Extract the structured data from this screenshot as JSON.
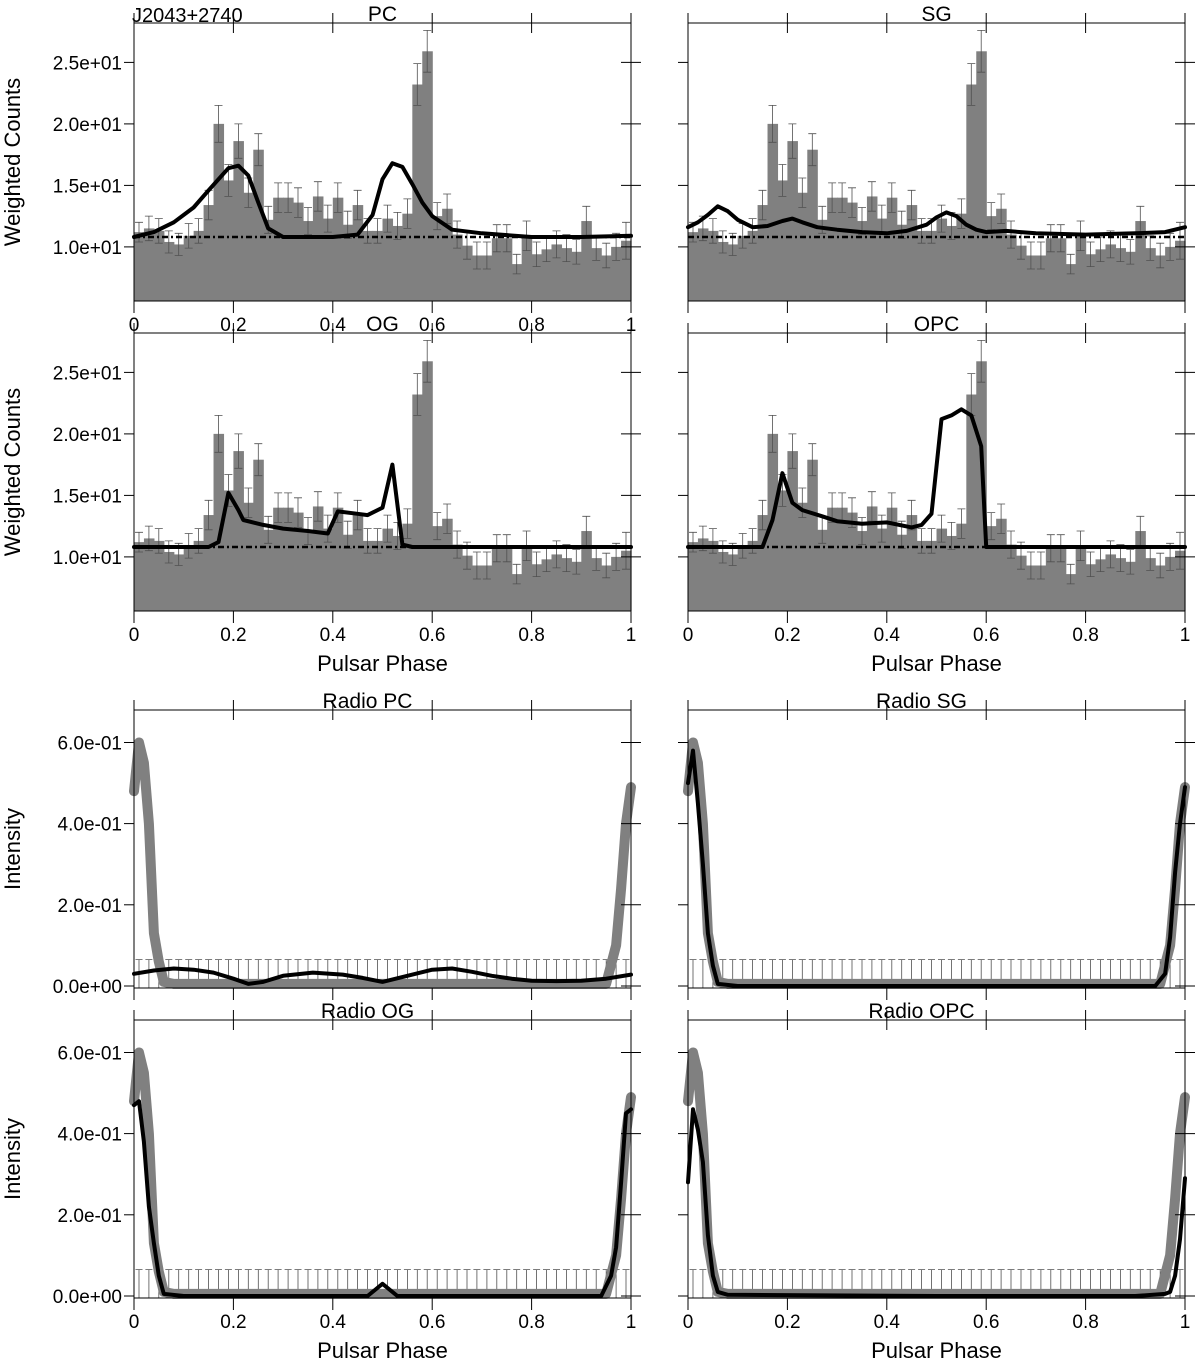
{
  "figure": {
    "source_label": "J2043+2740",
    "xlabel": "Pulsar Phase",
    "gamma_ylabel": "Weighted Counts",
    "radio_ylabel": "Intensity"
  },
  "colors": {
    "hist": "#808080",
    "model": "#000000",
    "radio": "#808080",
    "axis": "#000000"
  },
  "chart_data": [
    {
      "id": "gamma-pc",
      "type": "bar",
      "title": "PC",
      "xlabel": "Pulsar Phase",
      "ylabel": "Weighted Counts",
      "xlim": [
        0,
        1
      ],
      "ylim": [
        5.6,
        28.2
      ],
      "yticks": [
        10,
        15,
        20,
        25
      ],
      "ytick_labels": [
        "1.0e+01",
        "1.5e+01",
        "2.0e+01",
        "2.5e+01"
      ],
      "xticks": [
        0,
        0.2,
        0.4,
        0.6,
        0.8,
        1
      ],
      "xtick_labels": [
        "0",
        "0.2",
        "0.4",
        "0.6",
        "0.8",
        "1"
      ],
      "bins": 50,
      "counts": [
        11.2,
        11.5,
        11.3,
        10.4,
        10.2,
        10.9,
        11.3,
        13.4,
        20.0,
        15.4,
        18.6,
        14.4,
        17.9,
        12.2,
        14.0,
        14.0,
        13.6,
        12.1,
        14.1,
        12.3,
        14.0,
        11.8,
        13.4,
        11.3,
        11.3,
        12.3,
        11.7,
        12.7,
        23.2,
        25.9,
        12.5,
        13.1,
        11.0,
        10.1,
        9.3,
        9.3,
        10.7,
        10.7,
        8.6,
        10.9,
        9.4,
        9.8,
        10.2,
        9.9,
        9.6,
        12.1,
        9.9,
        9.3,
        10.0,
        10.5
      ],
      "errors": [
        0.8,
        1.0,
        1.0,
        0.9,
        0.9,
        1.0,
        1.0,
        1.2,
        1.5,
        1.3,
        1.4,
        1.2,
        1.3,
        1.1,
        1.2,
        1.2,
        1.2,
        1.1,
        1.2,
        1.1,
        1.2,
        1.1,
        1.2,
        1.0,
        1.0,
        1.1,
        1.1,
        1.2,
        1.7,
        1.7,
        1.1,
        1.2,
        1.1,
        1.1,
        1.1,
        1.1,
        1.1,
        1.1,
        0.8,
        1.2,
        1.0,
        1.0,
        1.1,
        1.1,
        1.0,
        1.2,
        1.0,
        1.0,
        1.1,
        1.5
      ],
      "background": 10.8,
      "model": {
        "x": [
          0,
          0.04,
          0.08,
          0.12,
          0.15,
          0.19,
          0.21,
          0.23,
          0.25,
          0.27,
          0.3,
          0.35,
          0.4,
          0.45,
          0.48,
          0.5,
          0.52,
          0.54,
          0.56,
          0.58,
          0.6,
          0.64,
          0.7,
          0.8,
          0.9,
          1.0
        ],
        "y": [
          10.8,
          11.2,
          12.0,
          13.2,
          14.6,
          16.4,
          16.6,
          15.8,
          13.6,
          11.5,
          10.8,
          10.8,
          10.8,
          11.0,
          12.6,
          15.5,
          16.8,
          16.5,
          15.1,
          13.6,
          12.5,
          11.4,
          11.1,
          10.8,
          10.8,
          10.9
        ]
      }
    },
    {
      "id": "gamma-sg",
      "type": "bar",
      "title": "SG",
      "xlabel": "Pulsar Phase",
      "ylabel": "Weighted Counts",
      "xlim": [
        0,
        1
      ],
      "ylim": [
        5.6,
        28.2
      ],
      "yticks": [
        10,
        15,
        20,
        25
      ],
      "ytick_labels": [
        "",
        "",
        "",
        ""
      ],
      "xticks": [
        0,
        0.2,
        0.4,
        0.6,
        0.8,
        1
      ],
      "xtick_labels": [
        "",
        "",
        "",
        "",
        "",
        ""
      ],
      "bins": 50,
      "counts": [
        11.2,
        11.5,
        11.3,
        10.4,
        10.2,
        10.9,
        11.3,
        13.4,
        20.0,
        15.4,
        18.6,
        14.4,
        17.9,
        12.2,
        14.0,
        14.0,
        13.6,
        12.1,
        14.1,
        12.3,
        14.0,
        11.8,
        13.4,
        11.3,
        11.3,
        12.3,
        11.7,
        12.7,
        23.2,
        25.9,
        12.5,
        13.1,
        11.0,
        10.1,
        9.3,
        9.3,
        10.7,
        10.7,
        8.6,
        10.9,
        9.4,
        9.8,
        10.2,
        9.9,
        9.6,
        12.1,
        9.9,
        9.3,
        10.0,
        10.5
      ],
      "errors": [
        0.8,
        1.0,
        1.0,
        0.9,
        0.9,
        1.0,
        1.0,
        1.2,
        1.5,
        1.3,
        1.4,
        1.2,
        1.3,
        1.1,
        1.2,
        1.2,
        1.2,
        1.1,
        1.2,
        1.1,
        1.2,
        1.1,
        1.2,
        1.0,
        1.0,
        1.1,
        1.1,
        1.2,
        1.7,
        1.7,
        1.1,
        1.2,
        1.1,
        1.1,
        1.1,
        1.1,
        1.1,
        1.1,
        0.8,
        1.2,
        1.0,
        1.0,
        1.1,
        1.1,
        1.0,
        1.2,
        1.0,
        1.0,
        1.1,
        1.5
      ],
      "background": 10.8,
      "model": {
        "x": [
          0,
          0.02,
          0.04,
          0.06,
          0.08,
          0.1,
          0.13,
          0.16,
          0.19,
          0.21,
          0.23,
          0.26,
          0.3,
          0.35,
          0.4,
          0.44,
          0.48,
          0.5,
          0.52,
          0.54,
          0.56,
          0.58,
          0.6,
          0.64,
          0.7,
          0.8,
          0.9,
          0.96,
          1.0
        ],
        "y": [
          11.6,
          12.0,
          12.6,
          13.3,
          12.9,
          12.2,
          11.6,
          11.7,
          12.1,
          12.3,
          12.0,
          11.6,
          11.4,
          11.2,
          11.1,
          11.3,
          11.8,
          12.4,
          12.8,
          12.5,
          11.8,
          11.4,
          11.2,
          11.3,
          11.1,
          11.0,
          11.1,
          11.2,
          11.6
        ]
      }
    },
    {
      "id": "gamma-og",
      "type": "bar",
      "title": "OG",
      "xlabel": "Pulsar Phase",
      "ylabel": "Weighted Counts",
      "xlim": [
        0,
        1
      ],
      "ylim": [
        5.6,
        28.2
      ],
      "yticks": [
        10,
        15,
        20,
        25
      ],
      "ytick_labels": [
        "1.0e+01",
        "1.5e+01",
        "2.0e+01",
        "2.5e+01"
      ],
      "xticks": [
        0,
        0.2,
        0.4,
        0.6,
        0.8,
        1
      ],
      "xtick_labels": [
        "0",
        "0.2",
        "0.4",
        "0.6",
        "0.8",
        "1"
      ],
      "bins": 50,
      "counts": [
        11.2,
        11.5,
        11.3,
        10.4,
        10.2,
        10.9,
        11.3,
        13.4,
        20.0,
        15.4,
        18.6,
        14.4,
        17.9,
        12.2,
        14.0,
        14.0,
        13.6,
        12.1,
        14.1,
        12.3,
        14.0,
        11.8,
        13.4,
        11.3,
        11.3,
        12.3,
        11.7,
        12.7,
        23.2,
        25.9,
        12.5,
        13.1,
        11.0,
        10.1,
        9.3,
        9.3,
        10.7,
        10.7,
        8.6,
        10.9,
        9.4,
        9.8,
        10.2,
        9.9,
        9.6,
        12.1,
        9.9,
        9.3,
        10.0,
        10.5
      ],
      "errors": [
        0.8,
        1.0,
        1.0,
        0.9,
        0.9,
        1.0,
        1.0,
        1.2,
        1.5,
        1.3,
        1.4,
        1.2,
        1.3,
        1.1,
        1.2,
        1.2,
        1.2,
        1.1,
        1.2,
        1.1,
        1.2,
        1.1,
        1.2,
        1.0,
        1.0,
        1.1,
        1.1,
        1.2,
        1.7,
        1.7,
        1.1,
        1.2,
        1.1,
        1.1,
        1.1,
        1.1,
        1.1,
        1.1,
        0.8,
        1.2,
        1.0,
        1.0,
        1.1,
        1.1,
        1.0,
        1.2,
        1.0,
        1.0,
        1.1,
        1.5
      ],
      "background": 10.8,
      "model": {
        "x": [
          0,
          0.1,
          0.15,
          0.17,
          0.19,
          0.21,
          0.22,
          0.26,
          0.3,
          0.35,
          0.39,
          0.41,
          0.45,
          0.47,
          0.5,
          0.52,
          0.54,
          0.56,
          0.6,
          0.8,
          1.0
        ],
        "y": [
          10.8,
          10.8,
          10.8,
          11.2,
          15.2,
          13.8,
          13.0,
          12.6,
          12.3,
          12.1,
          11.9,
          13.7,
          13.5,
          13.4,
          14.0,
          17.5,
          11.0,
          10.8,
          10.8,
          10.8,
          10.8
        ]
      }
    },
    {
      "id": "gamma-opc",
      "type": "bar",
      "title": "OPC",
      "xlabel": "Pulsar Phase",
      "ylabel": "Weighted Counts",
      "xlim": [
        0,
        1
      ],
      "ylim": [
        5.6,
        28.2
      ],
      "yticks": [
        10,
        15,
        20,
        25
      ],
      "ytick_labels": [
        "",
        "",
        "",
        ""
      ],
      "xticks": [
        0,
        0.2,
        0.4,
        0.6,
        0.8,
        1
      ],
      "xtick_labels": [
        "0",
        "0.2",
        "0.4",
        "0.6",
        "0.8",
        "1"
      ],
      "bins": 50,
      "counts": [
        11.2,
        11.5,
        11.3,
        10.4,
        10.2,
        10.9,
        11.3,
        13.4,
        20.0,
        15.4,
        18.6,
        14.4,
        17.9,
        12.2,
        14.0,
        14.0,
        13.6,
        12.1,
        14.1,
        12.3,
        14.0,
        11.8,
        13.4,
        11.3,
        11.3,
        12.3,
        11.7,
        12.7,
        23.2,
        25.9,
        12.5,
        13.1,
        11.0,
        10.1,
        9.3,
        9.3,
        10.7,
        10.7,
        8.6,
        10.9,
        9.4,
        9.8,
        10.2,
        9.9,
        9.6,
        12.1,
        9.9,
        9.3,
        10.0,
        10.5
      ],
      "errors": [
        0.8,
        1.0,
        1.0,
        0.9,
        0.9,
        1.0,
        1.0,
        1.2,
        1.5,
        1.3,
        1.4,
        1.2,
        1.3,
        1.1,
        1.2,
        1.2,
        1.2,
        1.1,
        1.2,
        1.1,
        1.2,
        1.1,
        1.2,
        1.0,
        1.0,
        1.1,
        1.1,
        1.2,
        1.7,
        1.7,
        1.1,
        1.2,
        1.1,
        1.1,
        1.1,
        1.1,
        1.1,
        1.1,
        0.8,
        1.2,
        1.0,
        1.0,
        1.1,
        1.1,
        1.0,
        1.2,
        1.0,
        1.0,
        1.1,
        1.5
      ],
      "background": 10.8,
      "model": {
        "x": [
          0,
          0.1,
          0.15,
          0.17,
          0.19,
          0.21,
          0.23,
          0.27,
          0.3,
          0.35,
          0.4,
          0.45,
          0.47,
          0.49,
          0.51,
          0.53,
          0.55,
          0.57,
          0.59,
          0.6,
          0.62,
          0.8,
          1.0
        ],
        "y": [
          10.8,
          10.8,
          10.8,
          13.0,
          16.8,
          14.4,
          13.8,
          13.3,
          12.9,
          12.7,
          12.8,
          12.4,
          12.6,
          13.5,
          21.2,
          21.5,
          22.0,
          21.5,
          19.0,
          10.8,
          10.8,
          10.8,
          10.8
        ]
      }
    },
    {
      "id": "radio-pc",
      "type": "line",
      "title": "Radio PC",
      "xlabel": "Pulsar Phase",
      "ylabel": "Intensity",
      "xlim": [
        0,
        1
      ],
      "ylim": [
        -0.005,
        0.68
      ],
      "yticks": [
        0,
        0.2,
        0.4,
        0.6
      ],
      "ytick_labels": [
        "0.0e+00",
        "2.0e-01",
        "4.0e-01",
        "6.0e-01"
      ],
      "xticks": [
        0,
        0.2,
        0.4,
        0.6,
        0.8,
        1
      ],
      "xtick_labels": [
        "",
        "",
        "",
        "",
        "",
        ""
      ],
      "error_bar_top": 0.065,
      "profile": {
        "x": [
          0,
          0.01,
          0.02,
          0.03,
          0.04,
          0.05,
          0.06,
          0.08,
          0.1,
          0.2,
          0.4,
          0.6,
          0.8,
          0.9,
          0.95,
          0.97,
          0.98,
          0.99,
          1.0
        ],
        "y": [
          0.48,
          0.6,
          0.55,
          0.4,
          0.13,
          0.06,
          0.01,
          0.005,
          0.005,
          0.005,
          0.005,
          0.005,
          0.005,
          0.005,
          0.005,
          0.1,
          0.24,
          0.4,
          0.49
        ]
      },
      "model": {
        "x": [
          0,
          0.04,
          0.08,
          0.12,
          0.16,
          0.2,
          0.23,
          0.26,
          0.3,
          0.36,
          0.42,
          0.46,
          0.5,
          0.55,
          0.6,
          0.64,
          0.68,
          0.72,
          0.76,
          0.8,
          0.85,
          0.9,
          0.95,
          1.0
        ],
        "y": [
          0.03,
          0.038,
          0.043,
          0.04,
          0.033,
          0.018,
          0.005,
          0.01,
          0.025,
          0.033,
          0.028,
          0.02,
          0.01,
          0.025,
          0.04,
          0.043,
          0.035,
          0.025,
          0.018,
          0.013,
          0.012,
          0.013,
          0.018,
          0.028
        ]
      }
    },
    {
      "id": "radio-sg",
      "type": "line",
      "title": "Radio SG",
      "xlabel": "Pulsar Phase",
      "ylabel": "Intensity",
      "xlim": [
        0,
        1
      ],
      "ylim": [
        -0.005,
        0.68
      ],
      "yticks": [
        0,
        0.2,
        0.4,
        0.6
      ],
      "ytick_labels": [
        "",
        "",
        "",
        ""
      ],
      "xticks": [
        0,
        0.2,
        0.4,
        0.6,
        0.8,
        1
      ],
      "xtick_labels": [
        "",
        "",
        "",
        "",
        "",
        ""
      ],
      "error_bar_top": 0.065,
      "profile": {
        "x": [
          0,
          0.01,
          0.02,
          0.03,
          0.04,
          0.05,
          0.06,
          0.08,
          0.1,
          0.2,
          0.4,
          0.6,
          0.8,
          0.9,
          0.95,
          0.97,
          0.98,
          0.99,
          1.0
        ],
        "y": [
          0.48,
          0.6,
          0.55,
          0.4,
          0.13,
          0.06,
          0.01,
          0.005,
          0.005,
          0.005,
          0.005,
          0.005,
          0.005,
          0.005,
          0.005,
          0.1,
          0.24,
          0.4,
          0.49
        ]
      },
      "model": {
        "x": [
          0,
          0.01,
          0.02,
          0.03,
          0.04,
          0.05,
          0.06,
          0.1,
          0.5,
          0.9,
          0.94,
          0.96,
          0.97,
          0.98,
          0.99,
          1.0
        ],
        "y": [
          0.5,
          0.58,
          0.45,
          0.3,
          0.13,
          0.05,
          0.005,
          0.0,
          0.0,
          0.0,
          0.0,
          0.03,
          0.12,
          0.28,
          0.4,
          0.49
        ]
      }
    },
    {
      "id": "radio-og",
      "type": "line",
      "title": "Radio OG",
      "xlabel": "Pulsar Phase",
      "ylabel": "Intensity",
      "xlim": [
        0,
        1
      ],
      "ylim": [
        -0.005,
        0.68
      ],
      "yticks": [
        0,
        0.2,
        0.4,
        0.6
      ],
      "ytick_labels": [
        "0.0e+00",
        "2.0e-01",
        "4.0e-01",
        "6.0e-01"
      ],
      "xticks": [
        0,
        0.2,
        0.4,
        0.6,
        0.8,
        1
      ],
      "xtick_labels": [
        "0",
        "0.2",
        "0.4",
        "0.6",
        "0.8",
        "1"
      ],
      "error_bar_top": 0.065,
      "profile": {
        "x": [
          0,
          0.01,
          0.02,
          0.03,
          0.04,
          0.05,
          0.06,
          0.08,
          0.1,
          0.2,
          0.4,
          0.6,
          0.8,
          0.9,
          0.95,
          0.97,
          0.98,
          0.99,
          1.0
        ],
        "y": [
          0.48,
          0.6,
          0.55,
          0.4,
          0.13,
          0.06,
          0.01,
          0.005,
          0.005,
          0.005,
          0.005,
          0.005,
          0.005,
          0.005,
          0.005,
          0.1,
          0.24,
          0.4,
          0.49
        ]
      },
      "model": {
        "x": [
          0,
          0.01,
          0.02,
          0.03,
          0.04,
          0.05,
          0.06,
          0.1,
          0.4,
          0.47,
          0.5,
          0.53,
          0.6,
          0.9,
          0.94,
          0.96,
          0.97,
          0.98,
          0.99,
          1.0
        ],
        "y": [
          0.47,
          0.48,
          0.38,
          0.22,
          0.13,
          0.05,
          0.005,
          0.0,
          0.0,
          0.0,
          0.03,
          0.0,
          0.0,
          0.0,
          0.0,
          0.05,
          0.12,
          0.28,
          0.45,
          0.46
        ]
      }
    },
    {
      "id": "radio-opc",
      "type": "line",
      "title": "Radio OPC",
      "xlabel": "Pulsar Phase",
      "ylabel": "Intensity",
      "xlim": [
        0,
        1
      ],
      "ylim": [
        -0.005,
        0.68
      ],
      "yticks": [
        0,
        0.2,
        0.4,
        0.6
      ],
      "ytick_labels": [
        "",
        "",
        "",
        ""
      ],
      "xticks": [
        0,
        0.2,
        0.4,
        0.6,
        0.8,
        1
      ],
      "xtick_labels": [
        "0",
        "0.2",
        "0.4",
        "0.6",
        "0.8",
        "1"
      ],
      "error_bar_top": 0.065,
      "profile": {
        "x": [
          0,
          0.01,
          0.02,
          0.03,
          0.04,
          0.05,
          0.06,
          0.08,
          0.1,
          0.2,
          0.4,
          0.6,
          0.8,
          0.9,
          0.95,
          0.97,
          0.98,
          0.99,
          1.0
        ],
        "y": [
          0.48,
          0.6,
          0.55,
          0.4,
          0.13,
          0.06,
          0.01,
          0.005,
          0.005,
          0.005,
          0.005,
          0.005,
          0.005,
          0.005,
          0.005,
          0.1,
          0.24,
          0.4,
          0.49
        ]
      },
      "model": {
        "x": [
          0,
          0.01,
          0.02,
          0.03,
          0.04,
          0.05,
          0.06,
          0.08,
          0.5,
          0.9,
          0.96,
          0.97,
          0.98,
          0.99,
          1.0
        ],
        "y": [
          0.28,
          0.46,
          0.41,
          0.33,
          0.15,
          0.05,
          0.01,
          0.003,
          0.0,
          0.0,
          0.005,
          0.01,
          0.05,
          0.14,
          0.29
        ]
      }
    }
  ]
}
